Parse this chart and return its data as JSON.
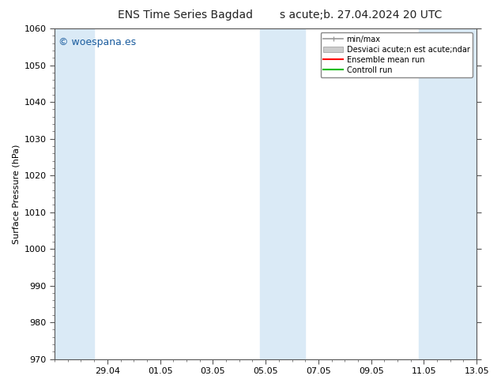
{
  "title_left": "ENS Time Series Bagdad",
  "title_right": "s acute;b. 27.04.2024 20 UTC",
  "ylabel": "Surface Pressure (hPa)",
  "ylim": [
    970,
    1060
  ],
  "yticks": [
    970,
    980,
    990,
    1000,
    1010,
    1020,
    1030,
    1040,
    1050,
    1060
  ],
  "xtick_labels": [
    "29.04",
    "01.05",
    "03.05",
    "05.05",
    "07.05",
    "09.05",
    "11.05",
    "13.05"
  ],
  "shade_color": "#daeaf6",
  "background_color": "#ffffff",
  "watermark": "© woespana.es",
  "legend_line1": "min/max",
  "legend_line2": "Desviaci acute;n est acute;ndar",
  "legend_line3": "Ensemble mean run",
  "legend_line4": "Controll run",
  "legend_color1": "#aaaaaa",
  "legend_color2": "#cccccc",
  "legend_color3": "#ff0000",
  "legend_color4": "#00bb00",
  "title_fontsize": 10,
  "axis_fontsize": 8,
  "tick_fontsize": 8
}
